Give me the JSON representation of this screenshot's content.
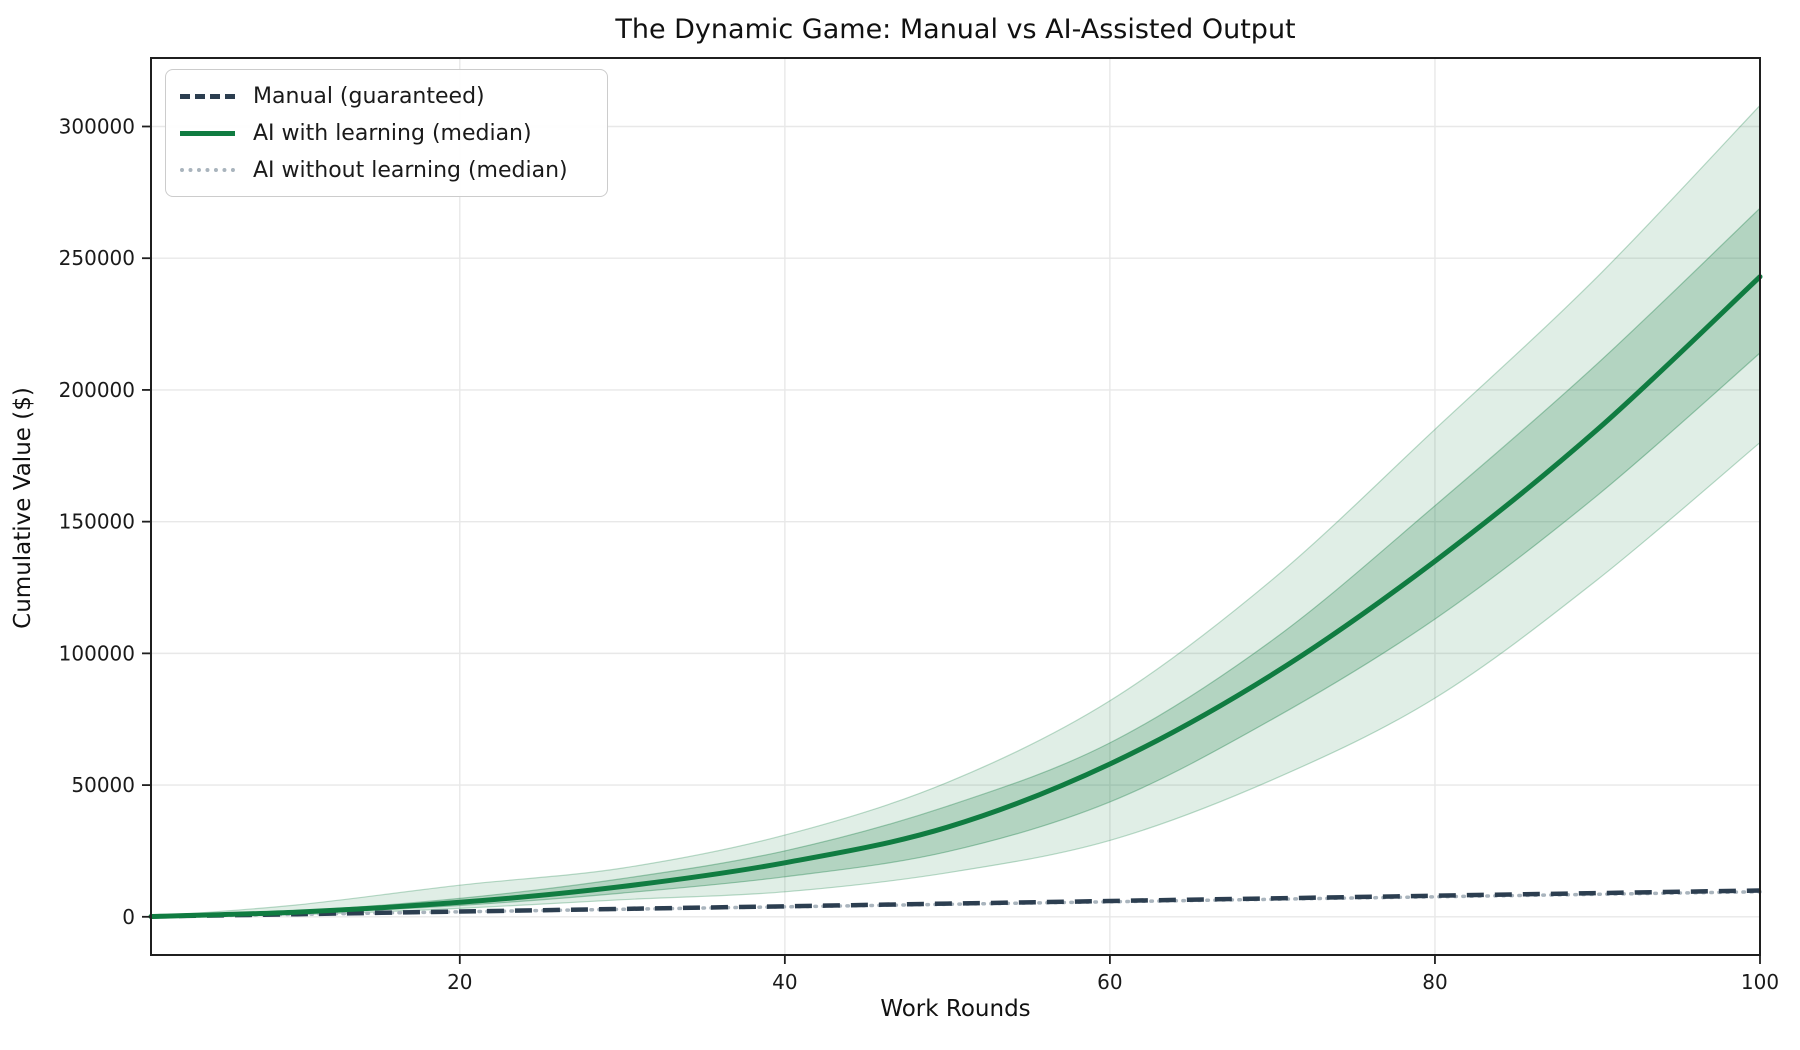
{
  "figure": {
    "background": "#ffffff",
    "spine_color": "#1f1f1f",
    "grid_color": "#e8e8e8"
  },
  "chart_data": {
    "type": "line",
    "title": "The Dynamic Game: Manual vs AI-Assisted Output",
    "xlabel": "Work Rounds",
    "ylabel": "Cumulative Value ($)",
    "xlim": [
      1,
      100
    ],
    "ylim": [
      -14500,
      326000
    ],
    "xticks": [
      20,
      40,
      60,
      80,
      100
    ],
    "yticks": [
      0,
      50000,
      100000,
      150000,
      200000,
      250000,
      300000
    ],
    "grid": true,
    "legend_position": "upper-left",
    "x": [
      1,
      10,
      20,
      30,
      40,
      50,
      60,
      70,
      80,
      90,
      100
    ],
    "series": [
      {
        "name": "Manual (guaranteed)",
        "style": "dashed",
        "color": "#2c3e50",
        "width": 4.5,
        "values": [
          100,
          1000,
          2000,
          3000,
          4000,
          5000,
          6000,
          7000,
          8000,
          9000,
          10000
        ]
      },
      {
        "name": "AI with learning (median)",
        "style": "solid",
        "color": "#107c41",
        "width": 5,
        "values": [
          100,
          1800,
          5500,
          11500,
          20500,
          34000,
          58000,
          92000,
          135000,
          185000,
          243000
        ]
      },
      {
        "name": "AI without learning (median)",
        "style": "dotted",
        "color": "#a9b4bd",
        "width": 3.5,
        "values": [
          90,
          950,
          1900,
          2850,
          3800,
          4750,
          5700,
          6650,
          7600,
          8550,
          9500
        ]
      }
    ],
    "bands": [
      {
        "name": "p5-p95-band",
        "color": "#107c41",
        "opacity": 0.13,
        "lower": [
          60,
          800,
          3200,
          6500,
          9500,
          16700,
          29000,
          52000,
          83000,
          128000,
          180000
        ],
        "upper": [
          150,
          4500,
          12000,
          18500,
          31000,
          51000,
          82000,
          128000,
          185000,
          243000,
          308000
        ]
      },
      {
        "name": "iqr-band",
        "color": "#107c41",
        "opacity": 0.22,
        "lower": [
          80,
          1400,
          4300,
          9000,
          15200,
          24700,
          43600,
          75000,
          113000,
          160000,
          214000
        ],
        "upper": [
          120,
          2200,
          7000,
          14500,
          25000,
          42000,
          66000,
          105000,
          156000,
          210000,
          269000
        ]
      }
    ]
  }
}
